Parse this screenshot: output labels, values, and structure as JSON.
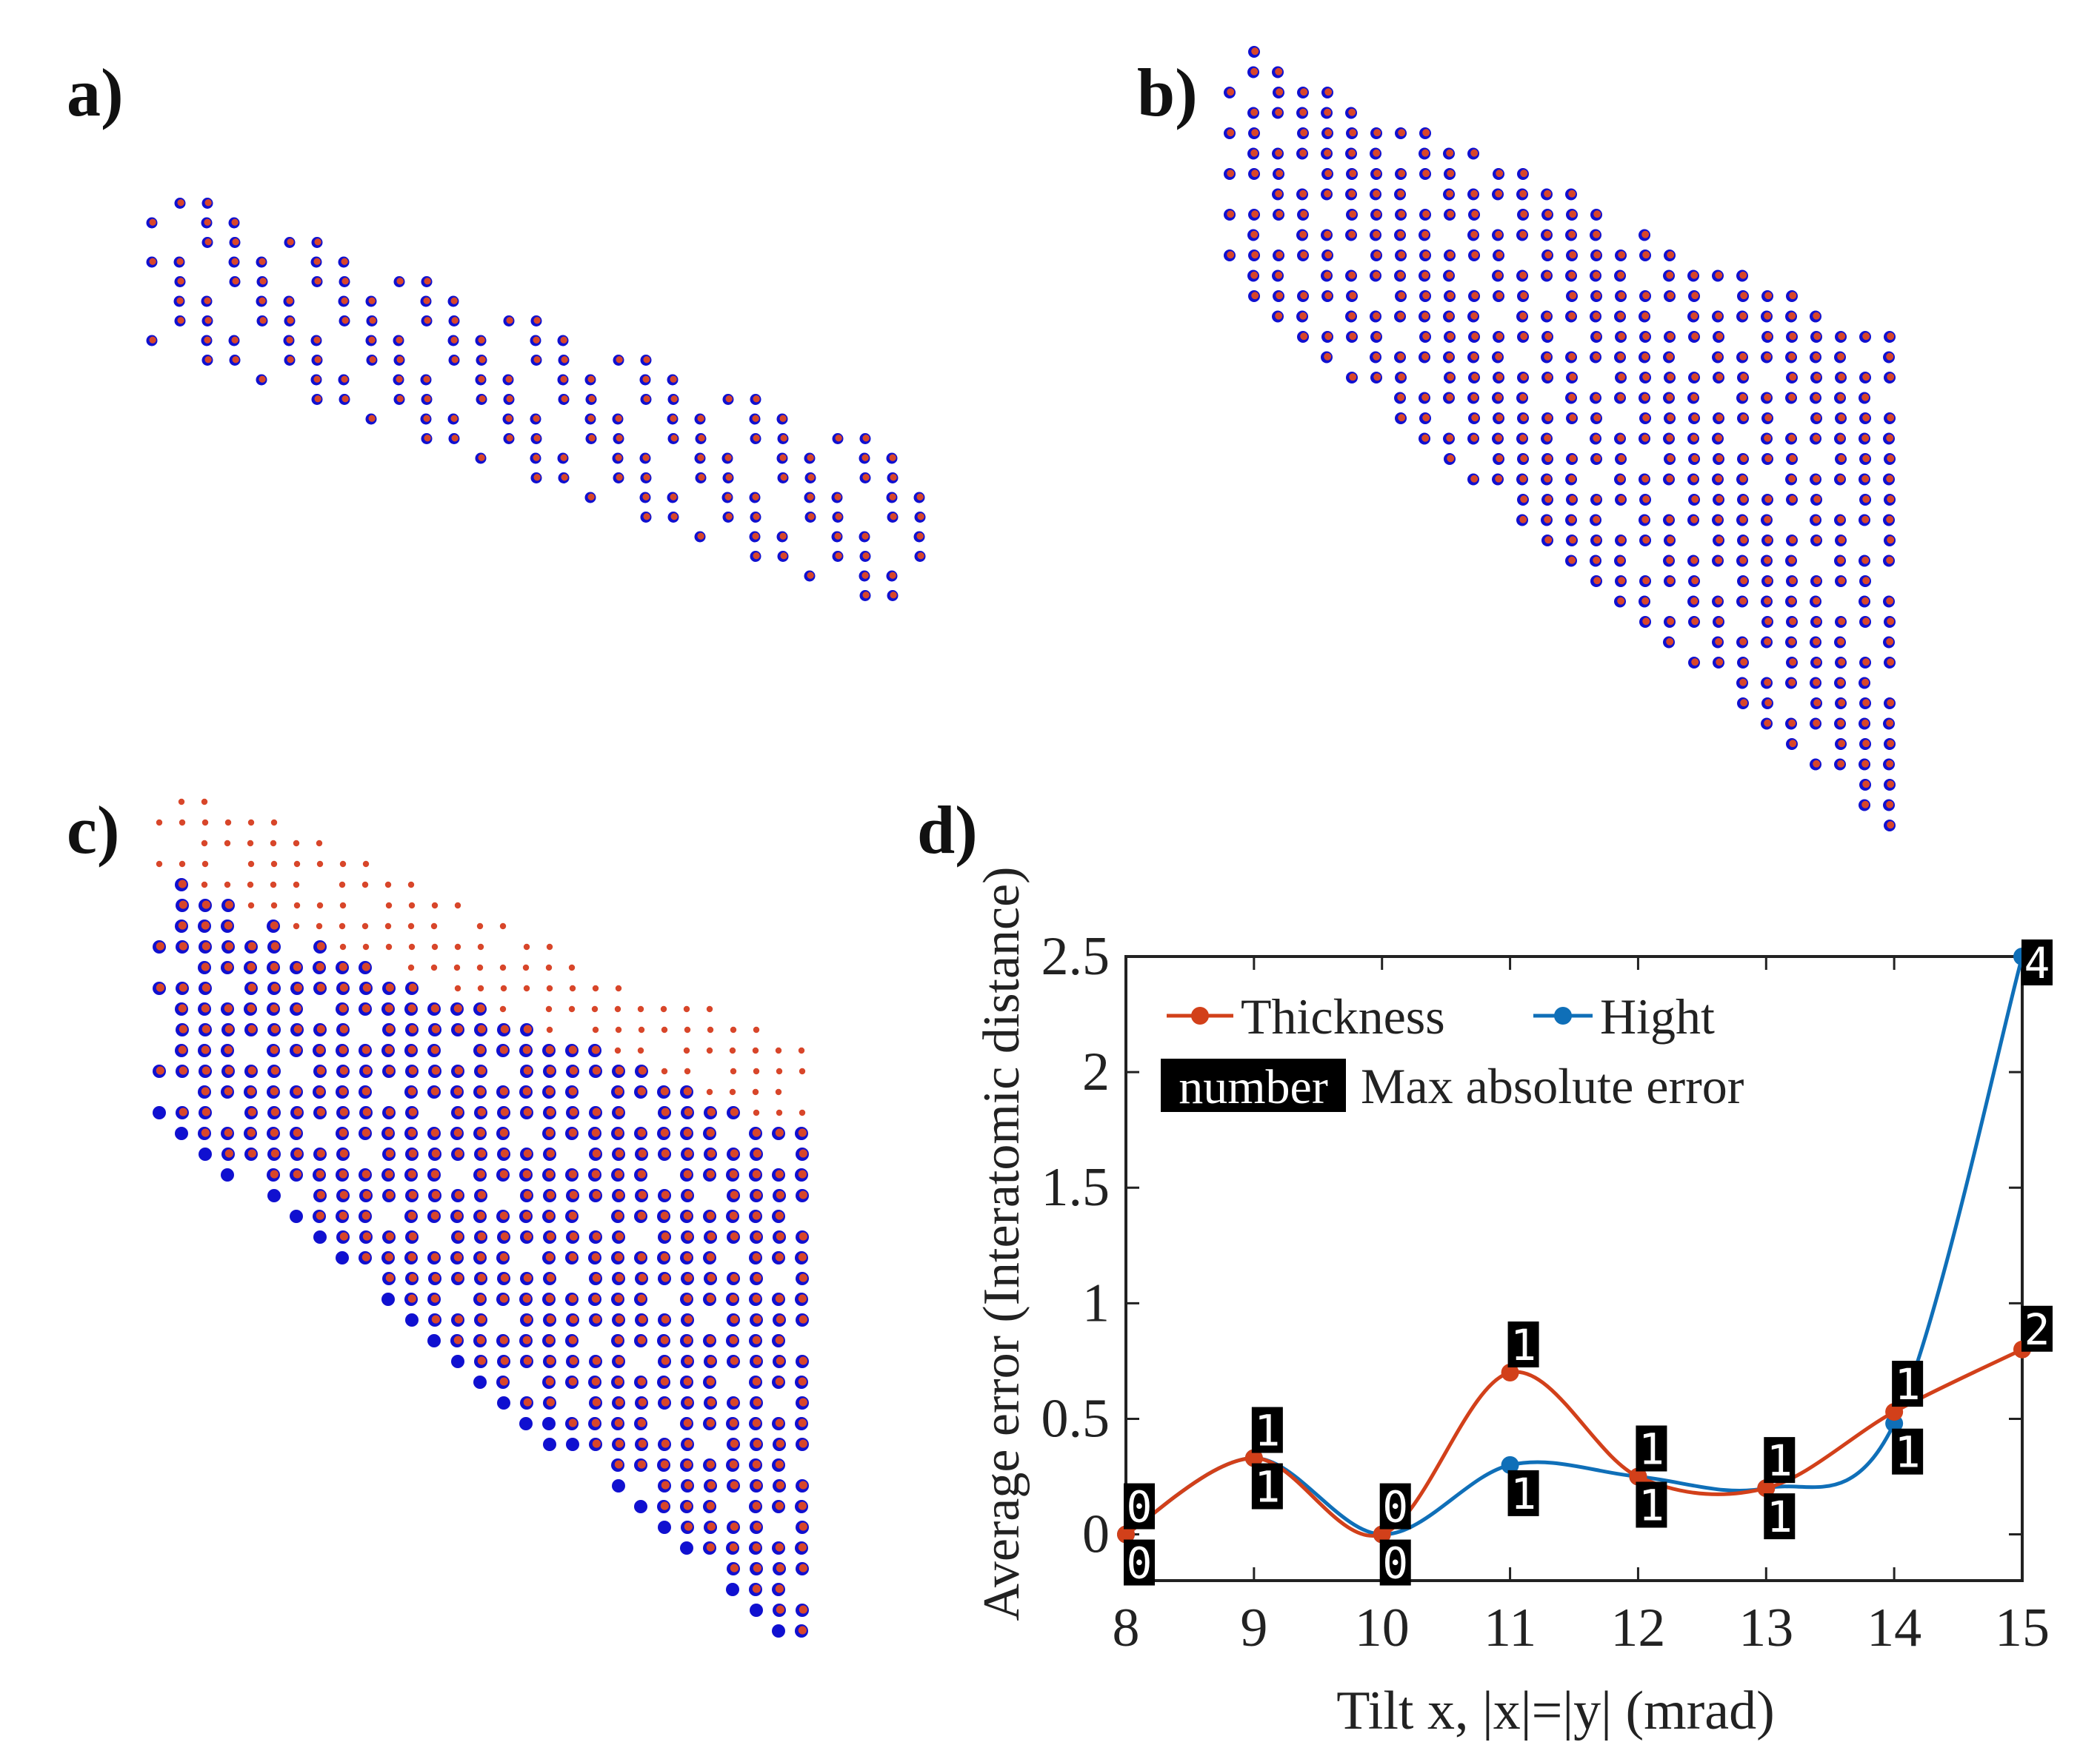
{
  "panels": {
    "a": {
      "label": "a)"
    },
    "b": {
      "label": "b)"
    },
    "c": {
      "label": "c)"
    },
    "d": {
      "label": "d)"
    }
  },
  "colors": {
    "thickness": "#d2401a",
    "hight": "#0f6fb8",
    "atom_red": "#d8462a",
    "atom_blue": "#1010d0",
    "axis": "#222222",
    "tag_bg": "#000000",
    "tag_fg": "#ffffff"
  },
  "chart_data": [
    {
      "type": "scatter",
      "panel": "a",
      "description_visible": "atomic column map (red-on-blue pairs), 22 rows",
      "rows": 22
    },
    {
      "type": "scatter",
      "panel": "b",
      "rows": 40
    },
    {
      "type": "scatter",
      "panel": "c",
      "rows": 42
    },
    {
      "type": "line",
      "panel": "d",
      "title": "",
      "xlabel": "Tilt  x,  |x|=|y| (mrad)",
      "ylabel": "Average error (Interatomic distance)",
      "xlim": [
        8,
        15
      ],
      "ylim": [
        -0.2,
        2.5
      ],
      "xticks": [
        "8",
        "9",
        "10",
        "11",
        "12",
        "13",
        "14",
        "15"
      ],
      "yticks": [
        "0",
        "0.5",
        "1",
        "1.5",
        "2",
        "2.5"
      ],
      "x": [
        8,
        9,
        10,
        11,
        12,
        13,
        14,
        15
      ],
      "series": [
        {
          "name": "Thickness",
          "values": [
            0,
            0.33,
            0,
            0.7,
            0.25,
            0.2,
            0.53,
            0.8
          ],
          "max_abs_error": [
            "0",
            "1",
            "0",
            "1",
            "1",
            "1",
            "1",
            "2"
          ]
        },
        {
          "name": "Hight",
          "values": [
            0,
            0.33,
            0,
            0.3,
            0.25,
            0.2,
            0.48,
            2.5
          ],
          "max_abs_error": [
            "0",
            "1",
            "0",
            "1",
            "1",
            "1",
            "1",
            "4"
          ]
        }
      ],
      "legend": {
        "placement": "top-left",
        "tag_sample": "number",
        "tag_caption": "Max absolute error"
      },
      "grid": false
    }
  ]
}
